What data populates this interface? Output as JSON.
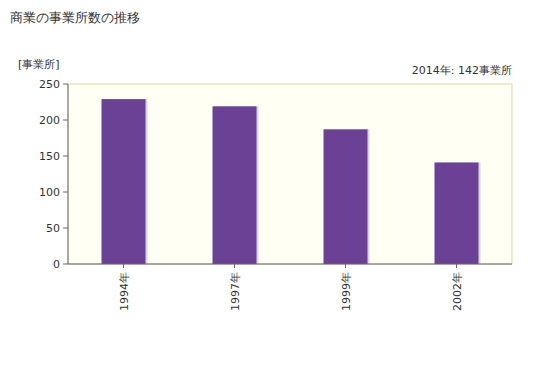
{
  "chart_data": {
    "type": "bar",
    "title": "商業の事業所数の推移",
    "y_label": "[事業所]",
    "annotation": "2014年: 142事業所",
    "categories": [
      "1994年",
      "1997年",
      "1999年",
      "2002年"
    ],
    "values": [
      229,
      219,
      187,
      141
    ],
    "color": "#6b4196",
    "ylim": [
      0,
      250
    ],
    "yticks": [
      0,
      50,
      100,
      150,
      200,
      250
    ],
    "grid": false
  }
}
